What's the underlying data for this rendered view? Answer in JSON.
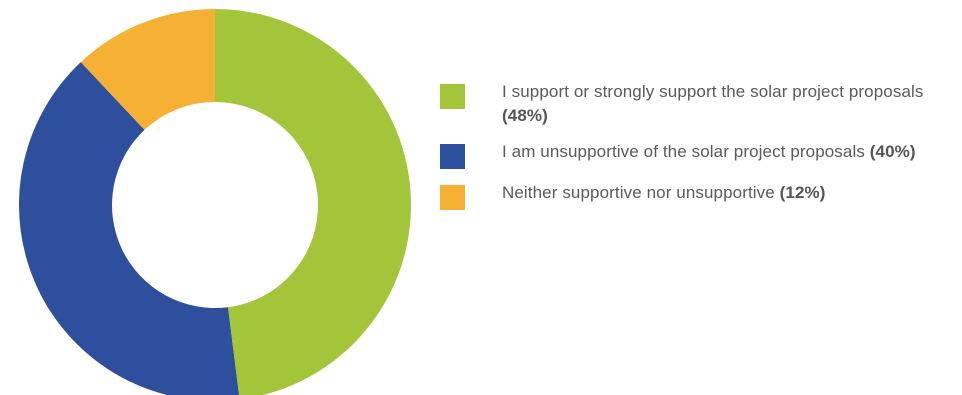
{
  "chart_data": {
    "type": "pie",
    "donut": true,
    "start_angle_deg": 0,
    "direction": "clockwise",
    "title": "",
    "categories": [
      "I support or strongly support the solar project proposals",
      "I am unsupportive of the solar project proposals",
      "Neither supportive nor unsupportive"
    ],
    "values": [
      48,
      40,
      12
    ],
    "value_labels": [
      "(48%)",
      "(40%)",
      "(12%)"
    ],
    "colors": [
      "#a2c53a",
      "#2e4e9e",
      "#f6b033"
    ],
    "legend_position": "right"
  }
}
